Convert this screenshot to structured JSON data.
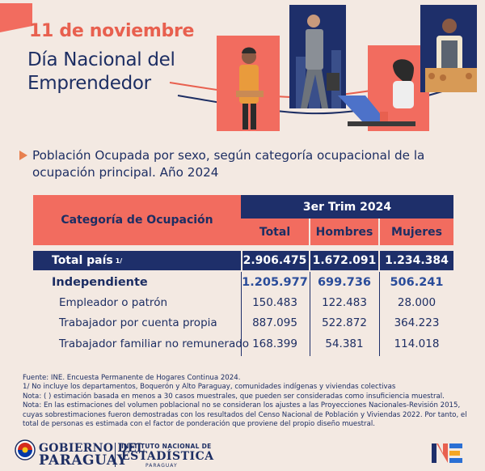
{
  "header": {
    "date": "11 de noviembre",
    "title_line1": "Día Nacional del",
    "title_line2": "Emprendedor"
  },
  "subtitle": "Población Ocupada por sexo, según categoría ocupacional de la ocupación principal. Año 2024",
  "table": {
    "category_header": "Categoría de Ocupación",
    "period": "3er Trim 2024",
    "columns": [
      "Total",
      "Hombres",
      "Mujeres"
    ],
    "total_row": {
      "label": "Total país",
      "superscript": "1/",
      "values": [
        "2.906.475",
        "1.672.091",
        "1.234.384"
      ]
    },
    "rows": [
      {
        "label": "Independiente",
        "values": [
          "1.205.977",
          "699.736",
          "506.241"
        ],
        "bold": true
      },
      {
        "label": "Empleador o patrón",
        "values": [
          "150.483",
          "122.483",
          "28.000"
        ]
      },
      {
        "label": "Trabajador por cuenta propia",
        "values": [
          "887.095",
          "522.872",
          "364.223"
        ]
      },
      {
        "label": "Trabajador familiar no remunerado",
        "values": [
          "168.399",
          "54.381",
          "114.018"
        ]
      }
    ]
  },
  "footnotes": {
    "source": "Fuente: INE. Encuesta Permanente de Hogares Continua 2024.",
    "note1": "1/ No incluye los departamentos, Boquerón y Alto Paraguay, comunidades indígenas y viviendas colectivas",
    "note2": "Nota: ( ) estimación basada en menos a 30 casos muestrales, que pueden ser consideradas como insuficiencia muestral.",
    "note3": "Nota: En las estimaciones del volumen poblacional no se consideran los ajustes a las Proyecciones Nacionales-Revisión 2015, cuyas sobrestimaciones fueron demostradas con los resultados del Censo Nacional de Población y Viviendas 2022. Por tanto, el total de personas es estimada con el factor de ponderación que proviene del propio diseño muestral."
  },
  "footer": {
    "gob_line1": "GOBIERNO DEL",
    "gob_line2": "PARAGUAY",
    "ine_line1": "INSTITUTO NACIONAL DE",
    "ine_line2": "ESTADÍSTICA",
    "ine_line3": "PARAGUAY",
    "ine_logo": "NE"
  },
  "colors": {
    "navy": "#1e2f6a",
    "coral": "#f26c5f",
    "background": "#f3e9e2",
    "accent_blue": "#2a4c9a"
  }
}
